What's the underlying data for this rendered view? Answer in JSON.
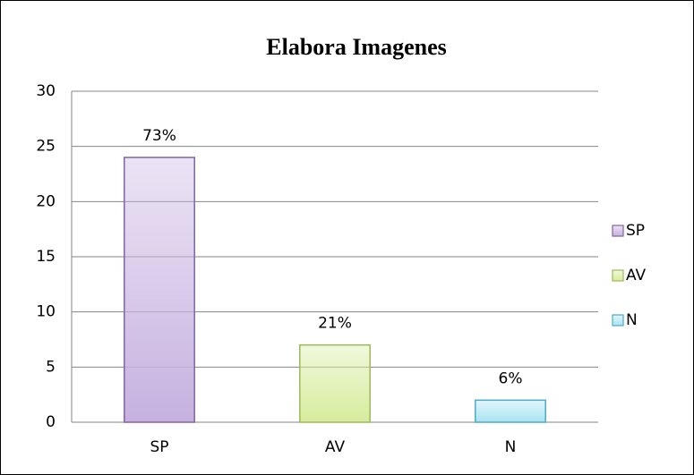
{
  "chart_data": {
    "type": "bar",
    "title": "Elabora Imagenes",
    "categories": [
      "SP",
      "AV",
      "N"
    ],
    "values": [
      24,
      7,
      2
    ],
    "value_labels": [
      "73%",
      "21%",
      "6%"
    ],
    "colors": [
      "#c6b1e0",
      "#d6ec9c",
      "#a9e4f2"
    ],
    "border_colors": [
      "#8064a2",
      "#9bbb59",
      "#4bacc6"
    ],
    "ylim": [
      0,
      30
    ],
    "yticks": [
      0,
      5,
      10,
      15,
      20,
      25,
      30
    ],
    "grid": true,
    "legend": "right"
  }
}
